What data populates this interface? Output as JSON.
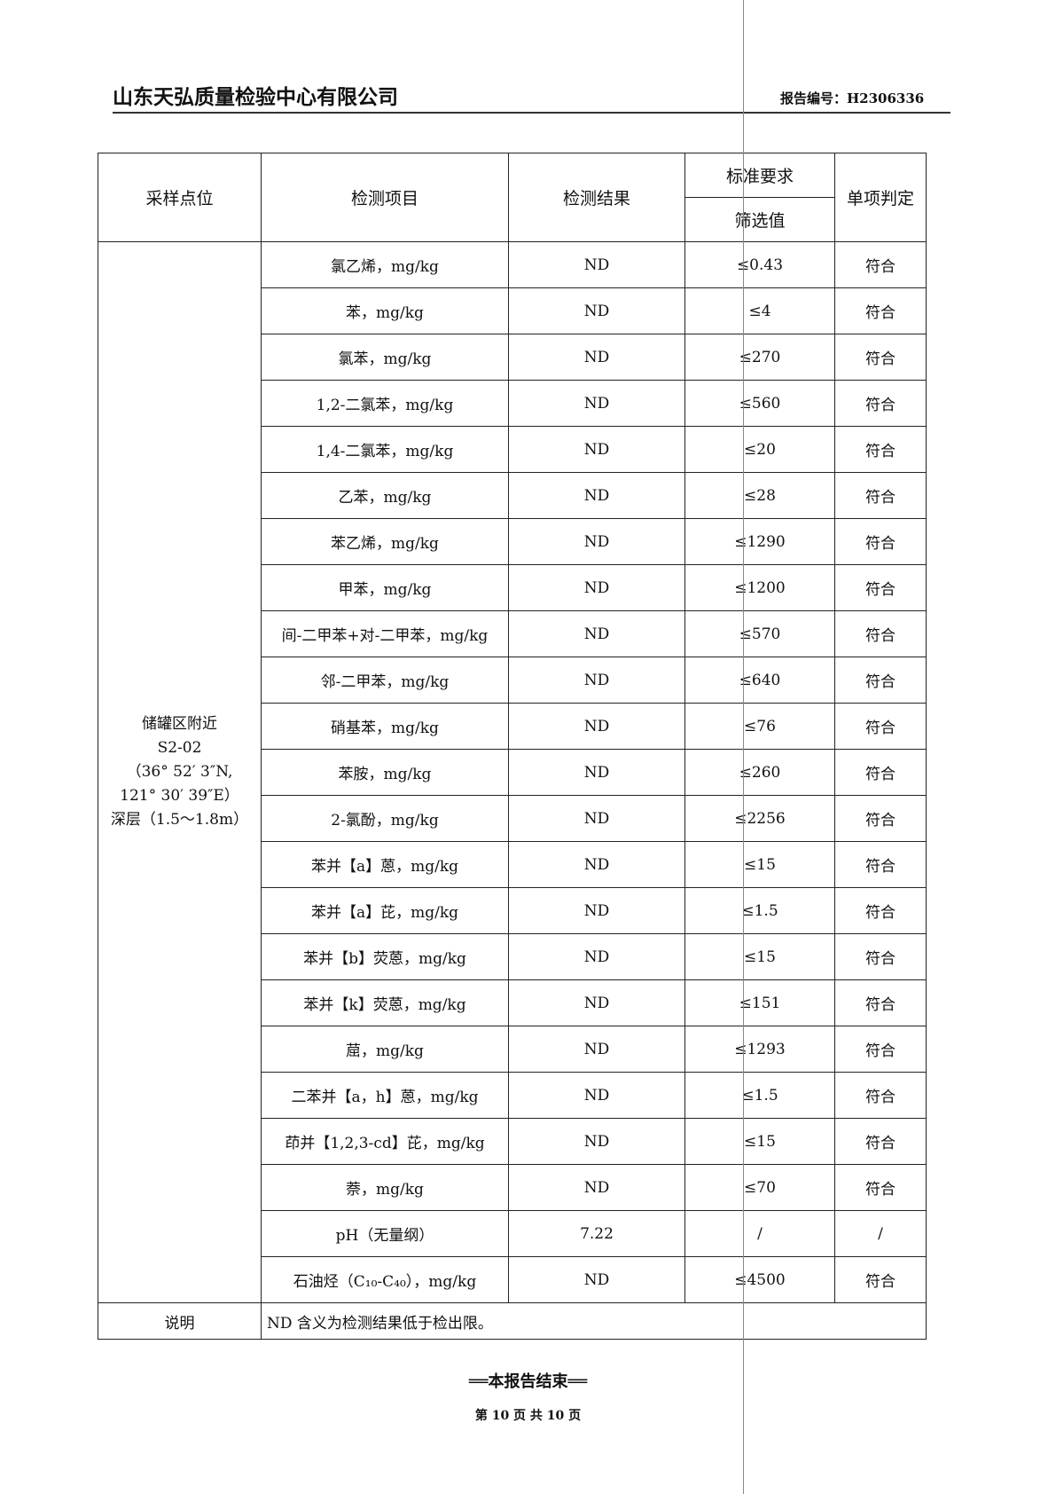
{
  "header": {
    "company": "山东天弘质量检验中心有限公司",
    "report_no": "报告编号：H2306336"
  },
  "table": {
    "headers": {
      "site": "采样点位",
      "item": "检测项目",
      "result": "检测结果",
      "standard": "标准要求",
      "screen": "筛选值",
      "judge": "单项判定"
    },
    "site_lines": [
      "储罐区附近",
      "S2-02",
      "（36° 52′ 3″N,",
      "121° 30′ 39″E）",
      "深层（1.5～1.8m）"
    ],
    "rows": [
      {
        "item": "氯乙烯，mg/kg",
        "result": "ND",
        "limit": "≤0.43",
        "judge": "符合"
      },
      {
        "item": "苯，mg/kg",
        "result": "ND",
        "limit": "≤4",
        "judge": "符合"
      },
      {
        "item": "氯苯，mg/kg",
        "result": "ND",
        "limit": "≤270",
        "judge": "符合"
      },
      {
        "item": "1,2-二氯苯，mg/kg",
        "result": "ND",
        "limit": "≤560",
        "judge": "符合"
      },
      {
        "item": "1,4-二氯苯，mg/kg",
        "result": "ND",
        "limit": "≤20",
        "judge": "符合"
      },
      {
        "item": "乙苯，mg/kg",
        "result": "ND",
        "limit": "≤28",
        "judge": "符合"
      },
      {
        "item": "苯乙烯，mg/kg",
        "result": "ND",
        "limit": "≤1290",
        "judge": "符合"
      },
      {
        "item": "甲苯，mg/kg",
        "result": "ND",
        "limit": "≤1200",
        "judge": "符合"
      },
      {
        "item": "间-二甲苯+对-二甲苯，mg/kg",
        "result": "ND",
        "limit": "≤570",
        "judge": "符合"
      },
      {
        "item": "邻-二甲苯，mg/kg",
        "result": "ND",
        "limit": "≤640",
        "judge": "符合"
      },
      {
        "item": "硝基苯，mg/kg",
        "result": "ND",
        "limit": "≤76",
        "judge": "符合"
      },
      {
        "item": "苯胺，mg/kg",
        "result": "ND",
        "limit": "≤260",
        "judge": "符合"
      },
      {
        "item": "2-氯酚，mg/kg",
        "result": "ND",
        "limit": "≤2256",
        "judge": "符合"
      },
      {
        "item": "苯并【a】蒽，mg/kg",
        "result": "ND",
        "limit": "≤15",
        "judge": "符合"
      },
      {
        "item": "苯并【a】芘，mg/kg",
        "result": "ND",
        "limit": "≤1.5",
        "judge": "符合"
      },
      {
        "item": "苯并【b】荧蒽，mg/kg",
        "result": "ND",
        "limit": "≤15",
        "judge": "符合"
      },
      {
        "item": "苯并【k】荧蒽，mg/kg",
        "result": "ND",
        "limit": "≤151",
        "judge": "符合"
      },
      {
        "item": "䓛，mg/kg",
        "result": "ND",
        "limit": "≤1293",
        "judge": "符合"
      },
      {
        "item": "二苯并【a，h】蒽，mg/kg",
        "result": "ND",
        "limit": "≤1.5",
        "judge": "符合"
      },
      {
        "item": "茚并【1,2,3-cd】芘，mg/kg",
        "result": "ND",
        "limit": "≤15",
        "judge": "符合"
      },
      {
        "item": "萘，mg/kg",
        "result": "ND",
        "limit": "≤70",
        "judge": "符合"
      },
      {
        "item": "pH（无量纲）",
        "result": "7.22",
        "limit": "/",
        "judge": "/"
      },
      {
        "item": "石油烃（C₁₀-C₄₀），mg/kg",
        "result": "ND",
        "limit": "≤4500",
        "judge": "符合"
      }
    ],
    "note_label": "说明",
    "note_text": "ND 含义为检测结果低于检出限。"
  },
  "footer": {
    "end": "══本报告结束══",
    "page": "第 10 页 共 10 页"
  }
}
